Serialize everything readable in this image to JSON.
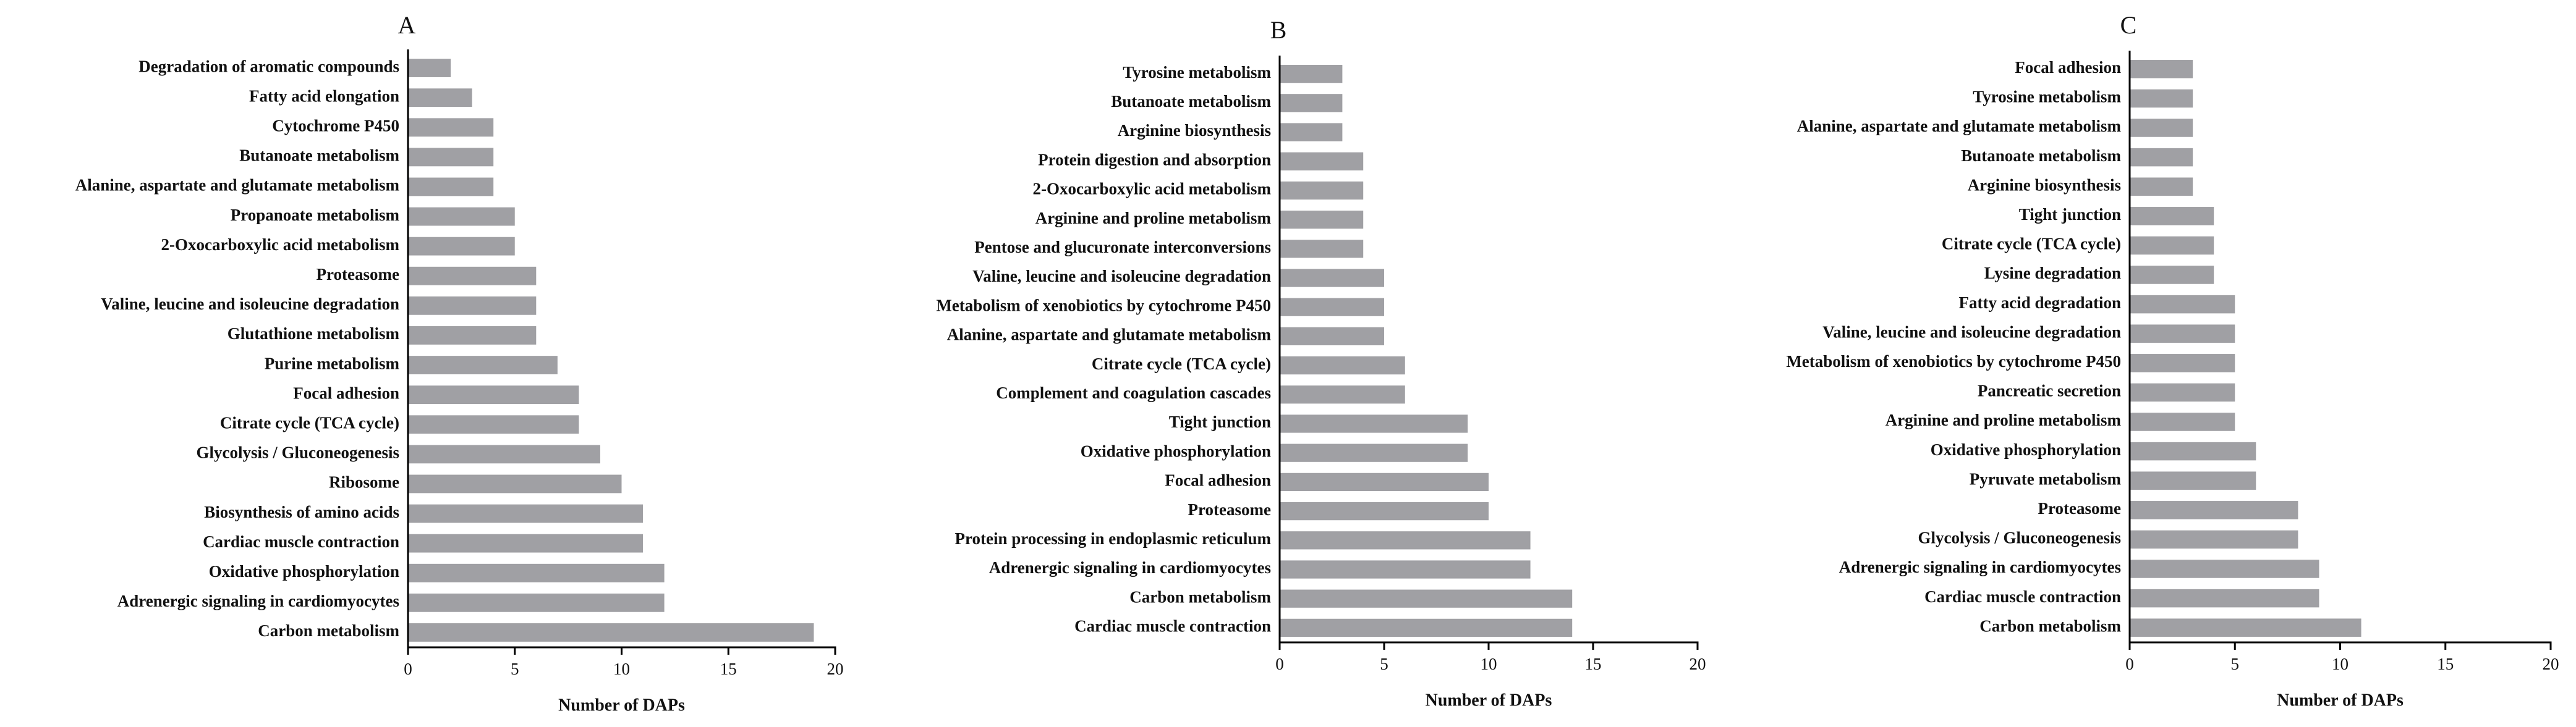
{
  "chart_data": [
    {
      "type": "bar",
      "orientation": "horizontal",
      "title": "A",
      "xlabel": "Number of DAPs",
      "color": "#a0a0a4",
      "categories": [
        "Degradation of aromatic compounds",
        "Fatty acid elongation",
        "Cytochrome P450",
        "Butanoate metabolism",
        "Alanine, aspartate and glutamate metabolism",
        "Propanoate metabolism",
        "2-Oxocarboxylic acid metabolism",
        "Proteasome",
        "Valine, leucine and isoleucine degradation",
        "Glutathione metabolism",
        "Purine metabolism",
        "Focal adhesion",
        "Citrate cycle (TCA cycle)",
        "Glycolysis / Gluconeogenesis",
        "Ribosome",
        "Biosynthesis of amino acids",
        "Cardiac muscle contraction",
        "Oxidative phosphorylation",
        "Adrenergic signaling in cardiomyocytes",
        "Carbon metabolism"
      ],
      "values": [
        2,
        3,
        4,
        4,
        4,
        5,
        5,
        6,
        6,
        6,
        7,
        8,
        8,
        9,
        10,
        11,
        11,
        12,
        12,
        19
      ],
      "xlim": [
        0,
        20
      ],
      "xticks": [
        0,
        5,
        10,
        15,
        20
      ]
    },
    {
      "type": "bar",
      "orientation": "horizontal",
      "title": "B",
      "xlabel": "Number of DAPs",
      "color": "#a0a0a4",
      "categories": [
        "Tyrosine metabolism",
        "Butanoate metabolism",
        "Arginine biosynthesis",
        "Protein digestion and absorption",
        "2-Oxocarboxylic acid metabolism",
        "Arginine and proline metabolism",
        "Pentose and glucuronate interconversions",
        "Valine, leucine and isoleucine degradation",
        "Metabolism of xenobiotics by cytochrome P450",
        "Alanine, aspartate and glutamate metabolism",
        "Citrate cycle (TCA cycle)",
        "Complement and coagulation cascades",
        "Tight junction",
        "Oxidative phosphorylation",
        "Focal adhesion",
        "Proteasome",
        "Protein processing in endoplasmic reticulum",
        "Adrenergic signaling in cardiomyocytes",
        "Carbon metabolism",
        "Cardiac muscle contraction"
      ],
      "values": [
        3,
        3,
        3,
        4,
        4,
        4,
        4,
        5,
        5,
        5,
        6,
        6,
        9,
        9,
        10,
        10,
        12,
        12,
        14,
        14
      ],
      "xlim": [
        0,
        20
      ],
      "xticks": [
        0,
        5,
        10,
        15,
        20
      ]
    },
    {
      "type": "bar",
      "orientation": "horizontal",
      "title": "C",
      "xlabel": "Number of DAPs",
      "color": "#a0a0a4",
      "categories": [
        "Focal adhesion",
        "Tyrosine metabolism",
        "Alanine, aspartate and glutamate metabolism",
        "Butanoate metabolism",
        "Arginine biosynthesis",
        "Tight junction",
        "Citrate cycle (TCA cycle)",
        "Lysine degradation",
        "Fatty acid degradation",
        "Valine, leucine and isoleucine degradation",
        "Metabolism of xenobiotics by cytochrome P450",
        "Pancreatic secretion",
        "Arginine and proline metabolism",
        "Oxidative phosphorylation",
        "Pyruvate metabolism",
        "Proteasome",
        "Glycolysis / Gluconeogenesis",
        "Adrenergic signaling in cardiomyocytes",
        "Cardiac muscle contraction",
        "Carbon metabolism"
      ],
      "values": [
        3,
        3,
        3,
        3,
        3,
        4,
        4,
        4,
        5,
        5,
        5,
        5,
        5,
        6,
        6,
        8,
        8,
        9,
        9,
        11
      ],
      "xlim": [
        0,
        20
      ],
      "xticks": [
        0,
        5,
        10,
        15,
        20
      ]
    }
  ]
}
